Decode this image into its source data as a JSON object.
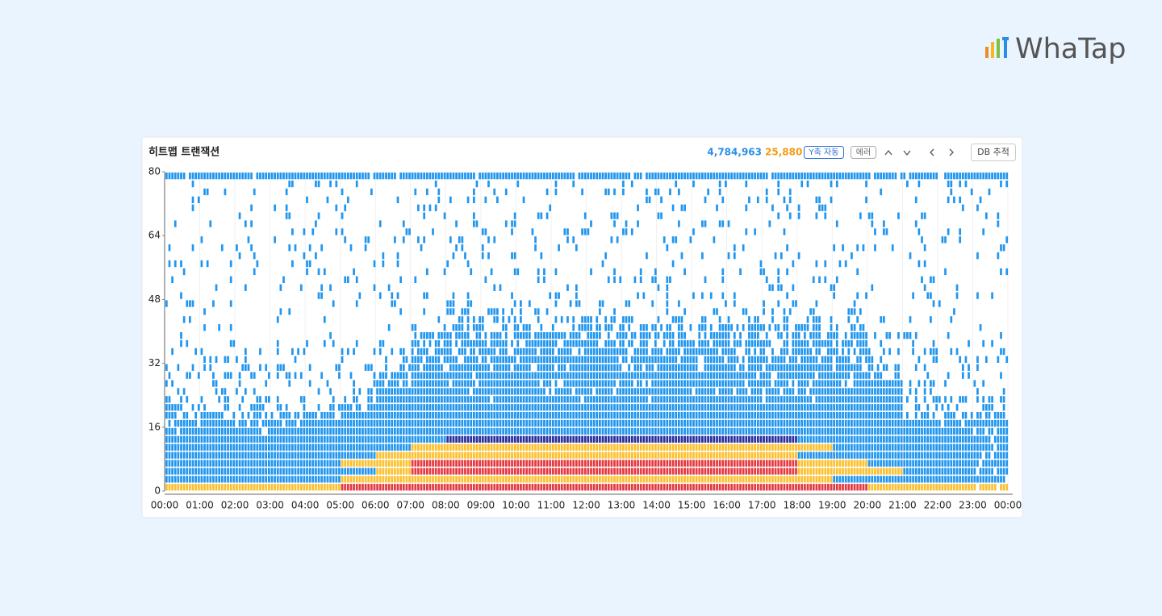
{
  "logo": "WhaTap",
  "toolbar": {
    "total": "4,784,963",
    "errors": "25,880",
    "y_axis_button": "Y축 자동",
    "error_button": "에러",
    "db_button": "DB 추적"
  },
  "chart_data": {
    "type": "heatmap",
    "title": "히트맵 트랜잭션",
    "x": [
      "00:00",
      "01:00",
      "02:00",
      "03:00",
      "04:00",
      "05:00",
      "06:00",
      "07:00",
      "08:00",
      "09:00",
      "10:00",
      "11:00",
      "12:00",
      "13:00",
      "14:00",
      "15:00",
      "16:00",
      "17:00",
      "18:00",
      "19:00",
      "20:00",
      "21:00",
      "22:00",
      "23:00",
      "00:00"
    ],
    "ylim": [
      0,
      80
    ],
    "yticks": [
      0,
      16,
      32,
      48,
      64,
      80
    ],
    "bin_size": 2,
    "slots_per_hour": 12,
    "grid": true,
    "colors": [
      "#2196ef",
      "#fbc02d",
      "#e53941",
      "#2a2f9e"
    ],
    "color_level": [
      [
        2,
        2,
        2,
        2,
        2,
        3,
        3,
        3,
        3,
        3,
        3,
        3,
        3,
        3,
        3,
        3,
        3,
        3,
        3,
        3,
        2,
        2,
        2,
        2
      ],
      [
        1,
        1,
        1,
        1,
        1,
        2,
        2,
        2,
        2,
        2,
        2,
        2,
        2,
        2,
        2,
        2,
        2,
        2,
        2,
        1,
        1,
        1,
        1,
        1
      ],
      [
        1,
        1,
        1,
        1,
        1,
        1,
        2,
        3,
        3,
        3,
        3,
        3,
        3,
        3,
        3,
        3,
        3,
        3,
        2,
        2,
        2,
        1,
        1,
        1
      ],
      [
        1,
        1,
        1,
        1,
        1,
        2,
        2,
        3,
        3,
        3,
        3,
        3,
        3,
        3,
        3,
        3,
        3,
        3,
        2,
        2,
        1,
        1,
        1,
        1
      ],
      [
        1,
        1,
        1,
        1,
        1,
        1,
        2,
        2,
        2,
        2,
        2,
        2,
        2,
        2,
        2,
        2,
        2,
        2,
        1,
        1,
        1,
        1,
        1,
        1
      ],
      [
        1,
        1,
        1,
        1,
        1,
        1,
        1,
        2,
        2,
        2,
        2,
        2,
        2,
        2,
        2,
        2,
        2,
        2,
        2,
        1,
        1,
        1,
        1,
        1
      ],
      [
        1,
        1,
        1,
        1,
        1,
        1,
        1,
        1,
        4,
        4,
        4,
        4,
        4,
        4,
        4,
        4,
        4,
        4,
        1,
        1,
        1,
        1,
        1,
        1
      ]
    ],
    "density": [
      [
        100,
        100,
        100,
        100,
        100,
        100,
        100,
        100,
        100,
        100,
        100,
        100,
        100,
        100,
        100,
        100,
        100,
        100,
        100,
        100,
        100,
        100,
        100,
        90
      ],
      [
        100,
        100,
        100,
        100,
        100,
        100,
        100,
        100,
        100,
        100,
        100,
        100,
        100,
        100,
        100,
        100,
        100,
        100,
        100,
        100,
        100,
        100,
        100,
        90
      ],
      [
        100,
        100,
        100,
        100,
        100,
        100,
        100,
        100,
        100,
        100,
        100,
        100,
        100,
        100,
        100,
        100,
        100,
        100,
        100,
        100,
        100,
        100,
        100,
        90
      ],
      [
        100,
        100,
        100,
        100,
        100,
        100,
        100,
        100,
        100,
        100,
        100,
        100,
        100,
        100,
        100,
        100,
        100,
        100,
        100,
        100,
        100,
        100,
        100,
        90
      ],
      [
        100,
        100,
        100,
        100,
        100,
        100,
        100,
        100,
        100,
        100,
        100,
        100,
        100,
        100,
        100,
        100,
        100,
        100,
        100,
        100,
        100,
        100,
        100,
        90
      ],
      [
        100,
        100,
        100,
        100,
        100,
        100,
        100,
        100,
        100,
        100,
        100,
        100,
        100,
        100,
        100,
        100,
        100,
        100,
        100,
        100,
        100,
        100,
        100,
        90
      ],
      [
        100,
        100,
        100,
        100,
        100,
        100,
        100,
        100,
        100,
        100,
        100,
        100,
        100,
        100,
        100,
        100,
        100,
        100,
        100,
        100,
        100,
        100,
        100,
        90
      ],
      [
        95,
        95,
        95,
        95,
        95,
        100,
        100,
        100,
        100,
        100,
        100,
        100,
        100,
        100,
        100,
        100,
        100,
        100,
        100,
        100,
        100,
        100,
        100,
        90
      ],
      [
        90,
        90,
        90,
        90,
        90,
        100,
        100,
        100,
        100,
        100,
        100,
        100,
        100,
        100,
        100,
        100,
        100,
        100,
        100,
        100,
        100,
        100,
        90,
        90
      ],
      [
        70,
        70,
        70,
        70,
        70,
        100,
        100,
        100,
        100,
        100,
        100,
        100,
        100,
        100,
        100,
        100,
        100,
        100,
        100,
        100,
        100,
        60,
        60,
        60
      ],
      [
        40,
        40,
        40,
        40,
        40,
        60,
        100,
        100,
        100,
        100,
        100,
        100,
        100,
        100,
        100,
        100,
        100,
        100,
        100,
        100,
        100,
        40,
        40,
        40
      ],
      [
        30,
        30,
        30,
        30,
        30,
        50,
        95,
        95,
        95,
        95,
        95,
        95,
        95,
        95,
        95,
        95,
        95,
        95,
        95,
        95,
        95,
        25,
        25,
        25
      ],
      [
        20,
        20,
        20,
        20,
        20,
        20,
        90,
        90,
        90,
        90,
        90,
        90,
        90,
        90,
        90,
        90,
        90,
        90,
        90,
        90,
        90,
        20,
        20,
        20
      ],
      [
        15,
        15,
        15,
        15,
        15,
        15,
        90,
        90,
        90,
        90,
        90,
        90,
        90,
        90,
        90,
        90,
        90,
        90,
        90,
        90,
        90,
        15,
        15,
        15
      ],
      [
        20,
        20,
        20,
        20,
        20,
        20,
        60,
        95,
        95,
        95,
        95,
        95,
        95,
        95,
        95,
        95,
        95,
        95,
        95,
        95,
        60,
        15,
        15,
        15
      ],
      [
        20,
        20,
        20,
        20,
        20,
        20,
        50,
        90,
        90,
        90,
        90,
        90,
        90,
        90,
        90,
        90,
        90,
        90,
        90,
        90,
        50,
        20,
        20,
        20
      ],
      [
        15,
        15,
        15,
        15,
        15,
        15,
        40,
        85,
        85,
        85,
        85,
        85,
        85,
        85,
        85,
        85,
        85,
        85,
        85,
        85,
        40,
        15,
        15,
        15
      ],
      [
        12,
        12,
        12,
        12,
        12,
        12,
        30,
        80,
        80,
        80,
        80,
        80,
        80,
        80,
        80,
        80,
        80,
        80,
        80,
        80,
        30,
        12,
        12,
        12
      ],
      [
        10,
        10,
        10,
        10,
        10,
        10,
        25,
        75,
        75,
        75,
        75,
        75,
        75,
        75,
        75,
        75,
        75,
        75,
        75,
        75,
        20,
        10,
        10,
        10
      ],
      [
        8,
        8,
        8,
        8,
        8,
        8,
        15,
        70,
        70,
        70,
        70,
        70,
        70,
        70,
        70,
        70,
        70,
        70,
        70,
        70,
        15,
        8,
        8,
        8
      ],
      [
        5,
        5,
        5,
        5,
        5,
        5,
        10,
        55,
        55,
        55,
        55,
        55,
        55,
        55,
        55,
        55,
        55,
        55,
        55,
        55,
        10,
        5,
        5,
        5
      ],
      [
        3,
        3,
        3,
        3,
        3,
        3,
        10,
        10,
        35,
        35,
        35,
        35,
        35,
        35,
        35,
        35,
        35,
        35,
        35,
        35,
        8,
        4,
        4,
        4
      ],
      [
        3,
        3,
        3,
        3,
        3,
        3,
        8,
        8,
        25,
        25,
        25,
        25,
        25,
        25,
        25,
        25,
        25,
        25,
        25,
        25,
        5,
        5,
        5,
        5
      ],
      [
        5,
        5,
        5,
        5,
        5,
        5,
        5,
        5,
        15,
        15,
        15,
        15,
        15,
        15,
        15,
        15,
        15,
        15,
        15,
        15,
        5,
        5,
        5,
        5
      ],
      [
        8,
        8,
        8,
        8,
        8,
        8,
        8,
        12,
        12,
        12,
        12,
        12,
        12,
        12,
        12,
        12,
        12,
        12,
        12,
        8,
        8,
        8,
        8,
        8
      ],
      [
        8,
        8,
        8,
        8,
        8,
        8,
        8,
        12,
        12,
        12,
        12,
        12,
        12,
        12,
        12,
        12,
        12,
        12,
        12,
        8,
        8,
        8,
        8,
        8
      ],
      [
        10,
        10,
        10,
        10,
        10,
        10,
        10,
        12,
        12,
        12,
        12,
        12,
        12,
        12,
        12,
        12,
        12,
        12,
        12,
        10,
        10,
        10,
        10,
        10
      ],
      [
        8,
        8,
        8,
        8,
        8,
        8,
        8,
        12,
        12,
        12,
        12,
        12,
        12,
        12,
        12,
        12,
        12,
        12,
        12,
        8,
        8,
        8,
        8,
        8
      ],
      [
        10,
        10,
        10,
        10,
        10,
        10,
        10,
        12,
        12,
        12,
        12,
        12,
        12,
        12,
        12,
        12,
        12,
        12,
        12,
        10,
        10,
        10,
        10,
        10
      ],
      [
        8,
        8,
        8,
        8,
        8,
        8,
        8,
        12,
        12,
        12,
        12,
        12,
        12,
        12,
        12,
        12,
        12,
        12,
        12,
        8,
        8,
        8,
        8,
        8
      ],
      [
        10,
        10,
        10,
        10,
        10,
        10,
        10,
        12,
        12,
        12,
        12,
        12,
        12,
        12,
        12,
        12,
        12,
        12,
        12,
        10,
        10,
        10,
        10,
        10
      ],
      [
        8,
        8,
        8,
        8,
        8,
        8,
        8,
        12,
        12,
        12,
        12,
        12,
        12,
        12,
        12,
        12,
        12,
        12,
        12,
        8,
        8,
        8,
        8,
        8
      ],
      [
        10,
        10,
        10,
        10,
        10,
        10,
        10,
        12,
        12,
        12,
        12,
        12,
        12,
        12,
        12,
        12,
        12,
        12,
        12,
        10,
        10,
        10,
        10,
        10
      ],
      [
        8,
        8,
        8,
        8,
        8,
        8,
        8,
        12,
        12,
        12,
        12,
        12,
        12,
        12,
        12,
        12,
        12,
        12,
        12,
        8,
        8,
        8,
        8,
        8
      ],
      [
        10,
        10,
        10,
        10,
        10,
        10,
        10,
        12,
        12,
        12,
        12,
        12,
        12,
        12,
        12,
        12,
        12,
        12,
        12,
        10,
        10,
        10,
        10,
        10
      ],
      [
        8,
        8,
        8,
        8,
        8,
        8,
        8,
        12,
        12,
        12,
        12,
        12,
        12,
        12,
        12,
        12,
        12,
        12,
        12,
        8,
        8,
        8,
        8,
        8
      ],
      [
        10,
        10,
        10,
        10,
        10,
        10,
        10,
        12,
        12,
        12,
        12,
        12,
        12,
        12,
        12,
        12,
        12,
        12,
        12,
        10,
        10,
        10,
        10,
        10
      ],
      [
        8,
        8,
        8,
        8,
        8,
        8,
        8,
        12,
        12,
        12,
        12,
        12,
        12,
        12,
        12,
        12,
        12,
        12,
        12,
        8,
        8,
        8,
        8,
        8
      ],
      [
        10,
        10,
        10,
        10,
        10,
        10,
        10,
        12,
        12,
        12,
        12,
        12,
        12,
        12,
        12,
        12,
        12,
        12,
        12,
        10,
        10,
        10,
        10,
        10
      ],
      [
        95,
        95,
        95,
        95,
        95,
        95,
        95,
        95,
        95,
        95,
        95,
        95,
        95,
        95,
        95,
        95,
        95,
        95,
        95,
        95,
        95,
        95,
        95,
        95
      ]
    ]
  }
}
